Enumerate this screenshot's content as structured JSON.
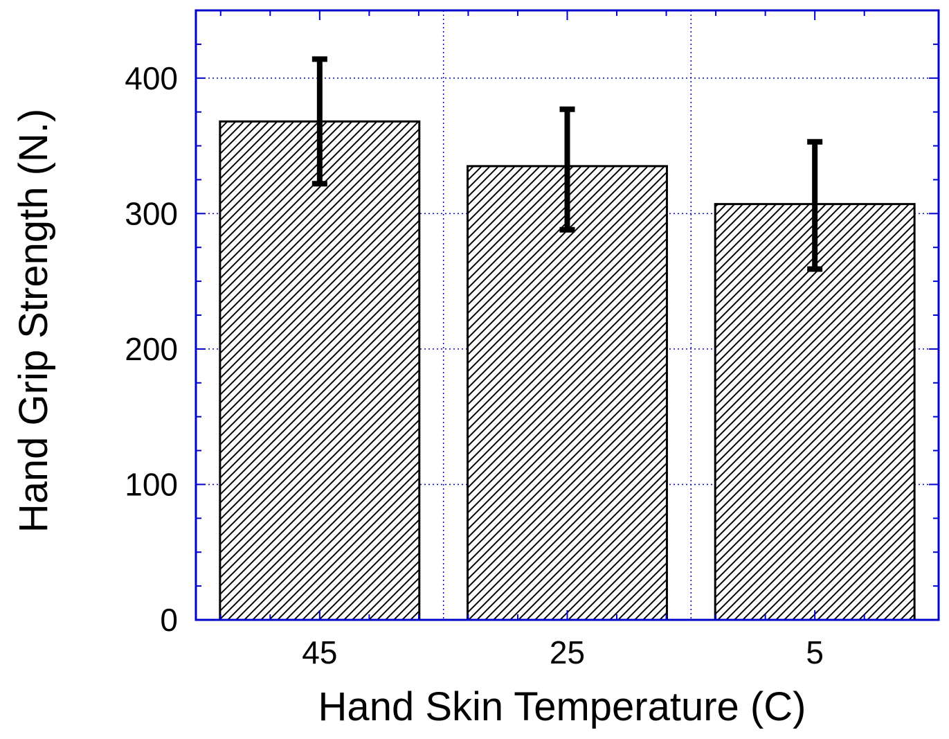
{
  "chart_data": {
    "type": "bar",
    "title": "",
    "xlabel": "Hand Skin Temperature (C)",
    "ylabel": "Hand Grip Strength (N.)",
    "categories": [
      "45",
      "25",
      "5"
    ],
    "values": [
      368,
      335,
      307
    ],
    "error_upper": [
      414,
      377,
      353
    ],
    "error_lower": [
      322,
      288,
      259
    ],
    "ylim": [
      0,
      450
    ],
    "yticks": [
      "0",
      "100",
      "200",
      "300",
      "400"
    ],
    "grid": true,
    "legend": "none",
    "colors": {
      "axis": "#0000cc",
      "grid": "#0000cc",
      "bar_fill": "#ffffff",
      "bar_hatch": "#000000",
      "bar_stroke": "#000000",
      "error_bar": "#000000",
      "text": "#000000"
    }
  }
}
